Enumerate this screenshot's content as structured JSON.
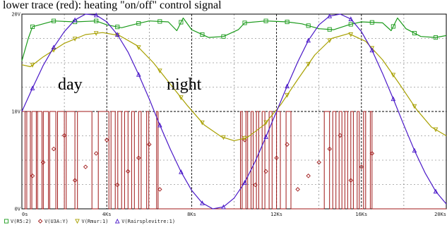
{
  "caption": "lower trace (red): heating \"on/off\" control signal",
  "annotations": [
    "day",
    "night"
  ],
  "chart_data": {
    "type": "line",
    "xlim": [
      0,
      20000
    ],
    "ylim": [
      0,
      20
    ],
    "grid": true,
    "x_ticks": [
      {
        "v": 0,
        "label": "0s"
      },
      {
        "v": 4000,
        "label": "4Ks"
      },
      {
        "v": 8000,
        "label": "8Ks"
      },
      {
        "v": 12000,
        "label": "12Ks"
      },
      {
        "v": 16000,
        "label": "16Ks"
      },
      {
        "v": 20000,
        "label": "20Ks"
      }
    ],
    "y_ticks": [
      {
        "v": 0,
        "label": "0V"
      },
      {
        "v": 10,
        "label": "10V"
      },
      {
        "v": 20,
        "label": "20V"
      }
    ],
    "series": [
      {
        "name": "V(R5:2)",
        "color": "#1a9a1a",
        "marker": "square",
        "points": [
          [
            0,
            15.2
          ],
          [
            300,
            17.5
          ],
          [
            500,
            18.7
          ],
          [
            1500,
            19.3
          ],
          [
            2500,
            19.2
          ],
          [
            3500,
            19.3
          ],
          [
            4000,
            18.9
          ],
          [
            4700,
            18.6
          ],
          [
            5400,
            19.0
          ],
          [
            6000,
            19.3
          ],
          [
            6900,
            19.2
          ],
          [
            7300,
            18.3
          ],
          [
            7600,
            19.6
          ],
          [
            8000,
            18.4
          ],
          [
            8800,
            17.6
          ],
          [
            9500,
            17.7
          ],
          [
            10200,
            18.4
          ],
          [
            10500,
            19.1
          ],
          [
            11500,
            19.3
          ],
          [
            12500,
            19.2
          ],
          [
            13200,
            19.0
          ],
          [
            14000,
            18.5
          ],
          [
            14700,
            18.4
          ],
          [
            15400,
            18.9
          ],
          [
            16000,
            19.2
          ],
          [
            17000,
            19.1
          ],
          [
            17400,
            18.3
          ],
          [
            17700,
            19.6
          ],
          [
            18100,
            18.5
          ],
          [
            18800,
            17.7
          ],
          [
            19500,
            17.6
          ],
          [
            20000,
            17.8
          ]
        ]
      },
      {
        "name": "V(U3A:Y)",
        "color": "#a01818",
        "marker": "diamond",
        "points": [
          [
            0,
            10
          ],
          [
            150,
            10
          ],
          [
            150,
            0
          ],
          [
            230,
            0
          ],
          [
            230,
            10
          ],
          [
            400,
            10
          ],
          [
            400,
            0
          ],
          [
            470,
            0
          ],
          [
            470,
            10
          ],
          [
            680,
            10
          ],
          [
            680,
            0
          ],
          [
            740,
            0
          ],
          [
            740,
            10
          ],
          [
            950,
            10
          ],
          [
            950,
            0
          ],
          [
            1010,
            0
          ],
          [
            1010,
            10
          ],
          [
            1250,
            10
          ],
          [
            1250,
            0
          ],
          [
            1310,
            0
          ],
          [
            1310,
            10
          ],
          [
            1600,
            10
          ],
          [
            1600,
            0
          ],
          [
            1680,
            0
          ],
          [
            1680,
            10
          ],
          [
            2000,
            10
          ],
          [
            2000,
            0
          ],
          [
            2090,
            0
          ],
          [
            2090,
            10
          ],
          [
            2500,
            10
          ],
          [
            2500,
            0
          ],
          [
            2620,
            0
          ],
          [
            2620,
            10
          ],
          [
            3300,
            10
          ],
          [
            3300,
            0
          ],
          [
            3600,
            0
          ],
          [
            3600,
            10
          ],
          [
            4100,
            10
          ],
          [
            4100,
            0
          ],
          [
            4200,
            0
          ],
          [
            4200,
            10
          ],
          [
            4400,
            10
          ],
          [
            4400,
            0
          ],
          [
            4520,
            0
          ],
          [
            4520,
            10
          ],
          [
            4700,
            10
          ],
          [
            4700,
            0
          ],
          [
            4840,
            0
          ],
          [
            4840,
            10
          ],
          [
            5000,
            10
          ],
          [
            5000,
            0
          ],
          [
            5170,
            0
          ],
          [
            5170,
            10
          ],
          [
            5300,
            10
          ],
          [
            5300,
            0
          ],
          [
            5500,
            0
          ],
          [
            5500,
            10
          ],
          [
            5620,
            10
          ],
          [
            5620,
            0
          ],
          [
            5880,
            0
          ],
          [
            5880,
            10
          ],
          [
            5980,
            10
          ],
          [
            5980,
            0
          ],
          [
            6350,
            0
          ],
          [
            6350,
            10
          ],
          [
            6420,
            10
          ],
          [
            6420,
            0
          ],
          [
            10300,
            0
          ],
          [
            10300,
            10
          ],
          [
            10380,
            10
          ],
          [
            10380,
            0
          ],
          [
            10560,
            0
          ],
          [
            10560,
            10
          ],
          [
            10640,
            10
          ],
          [
            10640,
            0
          ],
          [
            10800,
            0
          ],
          [
            10800,
            10
          ],
          [
            10900,
            10
          ],
          [
            10900,
            0
          ],
          [
            11050,
            0
          ],
          [
            11050,
            10
          ],
          [
            11160,
            10
          ],
          [
            11160,
            0
          ],
          [
            11320,
            0
          ],
          [
            11320,
            10
          ],
          [
            11450,
            10
          ],
          [
            11450,
            0
          ],
          [
            11650,
            0
          ],
          [
            11650,
            10
          ],
          [
            11790,
            10
          ],
          [
            11790,
            0
          ],
          [
            12000,
            0
          ],
          [
            12000,
            10
          ],
          [
            12180,
            10
          ],
          [
            12180,
            0
          ],
          [
            12450,
            0
          ],
          [
            12450,
            10
          ],
          [
            12680,
            10
          ],
          [
            12680,
            0
          ],
          [
            14250,
            0
          ],
          [
            14250,
            10
          ],
          [
            14500,
            10
          ],
          [
            14500,
            0
          ],
          [
            14650,
            0
          ],
          [
            14650,
            10
          ],
          [
            14800,
            10
          ],
          [
            14800,
            0
          ],
          [
            14950,
            0
          ],
          [
            14950,
            10
          ],
          [
            15080,
            10
          ],
          [
            15080,
            0
          ],
          [
            15220,
            0
          ],
          [
            15220,
            10
          ],
          [
            15350,
            10
          ],
          [
            15350,
            0
          ],
          [
            15500,
            0
          ],
          [
            15500,
            10
          ],
          [
            15620,
            10
          ],
          [
            15620,
            0
          ],
          [
            15800,
            0
          ],
          [
            15800,
            10
          ],
          [
            15900,
            10
          ],
          [
            15900,
            0
          ],
          [
            16100,
            0
          ],
          [
            16100,
            10
          ],
          [
            16200,
            10
          ],
          [
            16200,
            0
          ],
          [
            16420,
            0
          ],
          [
            16420,
            10
          ],
          [
            16500,
            10
          ],
          [
            16500,
            0
          ],
          [
            20000,
            0
          ]
        ]
      },
      {
        "name": "V(Rmur:1)",
        "color": "#a8a000",
        "marker": "triangle-down",
        "points": [
          [
            0,
            14.8
          ],
          [
            400,
            14.6
          ],
          [
            1000,
            15.6
          ],
          [
            2000,
            17.0
          ],
          [
            3000,
            17.9
          ],
          [
            3800,
            18.1
          ],
          [
            4600,
            17.8
          ],
          [
            5400,
            16.8
          ],
          [
            6200,
            15.0
          ],
          [
            7000,
            12.8
          ],
          [
            7800,
            10.6
          ],
          [
            8600,
            8.6
          ],
          [
            9400,
            7.4
          ],
          [
            10000,
            7.0
          ],
          [
            10600,
            7.3
          ],
          [
            11400,
            8.6
          ],
          [
            12200,
            10.7
          ],
          [
            13000,
            13.3
          ],
          [
            13800,
            15.8
          ],
          [
            14600,
            17.5
          ],
          [
            15400,
            18.0
          ],
          [
            16200,
            17.2
          ],
          [
            17000,
            15.3
          ],
          [
            17800,
            12.8
          ],
          [
            18600,
            10.2
          ],
          [
            19300,
            8.4
          ],
          [
            20000,
            7.5
          ]
        ]
      },
      {
        "name": "V(Rairsplevitre:1)",
        "color": "#4a18c8",
        "marker": "triangle-up",
        "points": [
          [
            0,
            10
          ],
          [
            500,
            12.4
          ],
          [
            1000,
            14.7
          ],
          [
            1500,
            16.6
          ],
          [
            2000,
            18.2
          ],
          [
            2500,
            19.4
          ],
          [
            3000,
            20.0
          ],
          [
            3500,
            19.9
          ],
          [
            4000,
            19.2
          ],
          [
            4500,
            17.9
          ],
          [
            5000,
            16.1
          ],
          [
            5500,
            13.8
          ],
          [
            6000,
            11.3
          ],
          [
            6500,
            8.6
          ],
          [
            7000,
            6.1
          ],
          [
            7500,
            3.8
          ],
          [
            8000,
            1.9
          ],
          [
            8500,
            0.6
          ],
          [
            9000,
            0.0
          ],
          [
            9500,
            0.2
          ],
          [
            10000,
            1.1
          ],
          [
            10500,
            2.7
          ],
          [
            11000,
            4.9
          ],
          [
            11500,
            7.4
          ],
          [
            12000,
            10.0
          ],
          [
            12500,
            12.6
          ],
          [
            13000,
            15.1
          ],
          [
            13500,
            17.3
          ],
          [
            14000,
            18.9
          ],
          [
            14500,
            19.8
          ],
          [
            15000,
            20.0
          ],
          [
            15500,
            19.5
          ],
          [
            16000,
            18.2
          ],
          [
            16500,
            16.3
          ],
          [
            17000,
            13.9
          ],
          [
            17500,
            11.3
          ],
          [
            18000,
            8.6
          ],
          [
            18500,
            6.0
          ],
          [
            19000,
            3.7
          ],
          [
            19500,
            1.8
          ],
          [
            20000,
            0.5
          ]
        ]
      }
    ]
  }
}
